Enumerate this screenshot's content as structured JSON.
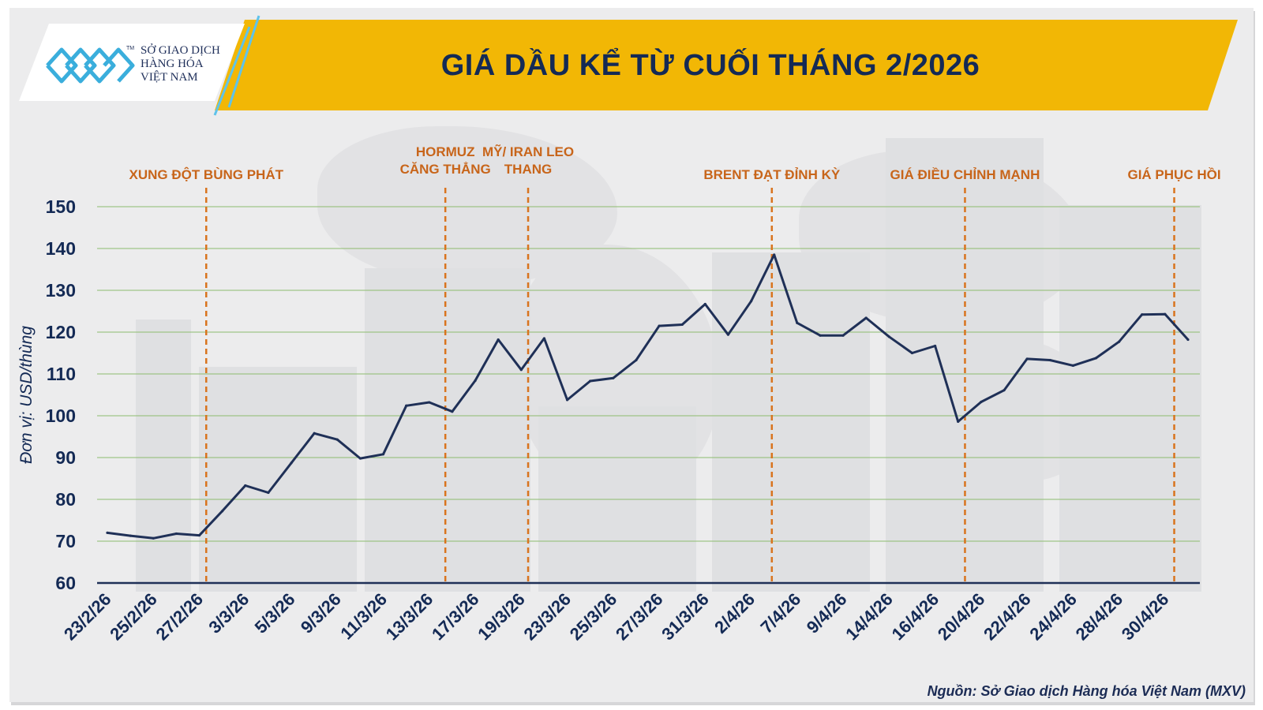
{
  "header": {
    "logo_lines": [
      "SỞ GIAO DỊCH",
      "HÀNG HÓA",
      "VIỆT NAM"
    ],
    "logo_tm": "TM",
    "title": "GIÁ DẦU KỂ TỪ CUỐI THÁNG 2/2026"
  },
  "footer": {
    "source": "Nguồn: Sở Giao dịch Hàng hóa Việt Nam (MXV)"
  },
  "colors": {
    "banner": "#f2b705",
    "line": "#1f3057",
    "event_line": "#d9741e",
    "event_text": "#c8651a",
    "grid": "#8dbb6e",
    "axis_text": "#142a55"
  },
  "chart_data": {
    "type": "line",
    "title": "GIÁ DẦU KỂ TỪ CUỐI THÁNG 2/2026",
    "xlabel": "",
    "ylabel": "Đơn vị: USD/thùng",
    "ylim": [
      60,
      150
    ],
    "yticks": [
      60,
      70,
      80,
      90,
      100,
      110,
      120,
      130,
      140,
      150
    ],
    "grid": true,
    "x_tick_labels": [
      "23/2/26",
      "25/2/26",
      "27/2/26",
      "3/3/26",
      "5/3/26",
      "9/3/26",
      "11/3/26",
      "13/3/26",
      "17/3/26",
      "19/3/26",
      "23/3/26",
      "25/3/26",
      "27/3/26",
      "31/3/26",
      "2/4/26",
      "7/4/26",
      "9/4/26",
      "14/4/26",
      "16/4/26",
      "20/4/26",
      "22/4/26",
      "24/4/26",
      "28/4/26",
      "30/4/26"
    ],
    "values": [
      72.0,
      71.3,
      70.7,
      71.8,
      71.4,
      77.2,
      83.3,
      81.6,
      88.7,
      95.8,
      94.3,
      89.8,
      90.8,
      102.4,
      103.2,
      101.0,
      108.4,
      118.2,
      111.0,
      118.5,
      103.8,
      108.3,
      109.0,
      113.3,
      121.5,
      121.8,
      126.7,
      119.4,
      127.4,
      138.5,
      122.2,
      119.2,
      119.2,
      123.4,
      118.9,
      115.0,
      116.7,
      98.6,
      103.3,
      106.1,
      113.6,
      113.3,
      112.0,
      113.8,
      117.7,
      124.2,
      124.3,
      118.2
    ],
    "events": [
      {
        "index": 4.3,
        "lines": [
          "XUNG ĐỘT BÙNG PHÁT"
        ]
      },
      {
        "index": 14.7,
        "lines": [
          "HORMUZ",
          "CĂNG THẲNG"
        ]
      },
      {
        "index": 18.3,
        "lines": [
          "MỸ/ IRAN LEO",
          "THANG"
        ]
      },
      {
        "index": 28.9,
        "lines": [
          "BRENT ĐẠT ĐỈNH KỲ"
        ]
      },
      {
        "index": 37.3,
        "lines": [
          "GIÁ ĐIỀU CHỈNH MẠNH"
        ]
      },
      {
        "index": 46.4,
        "lines": [
          "GIÁ PHỤC HỒI"
        ]
      }
    ]
  }
}
